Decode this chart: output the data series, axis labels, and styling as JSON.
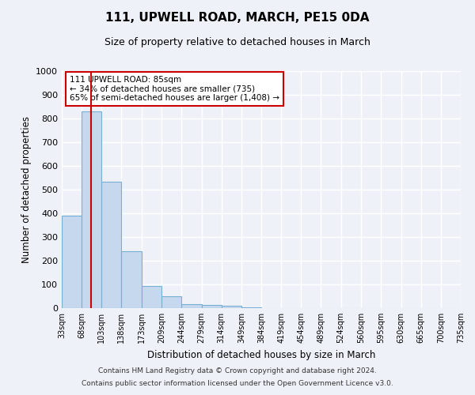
{
  "title": "111, UPWELL ROAD, MARCH, PE15 0DA",
  "subtitle": "Size of property relative to detached houses in March",
  "xlabel": "Distribution of detached houses by size in March",
  "ylabel": "Number of detached properties",
  "bar_color": "#c5d8ee",
  "bar_edge_color": "#7aafd4",
  "bins": [
    "33sqm",
    "68sqm",
    "103sqm",
    "138sqm",
    "173sqm",
    "209sqm",
    "244sqm",
    "279sqm",
    "314sqm",
    "349sqm",
    "384sqm",
    "419sqm",
    "454sqm",
    "489sqm",
    "524sqm",
    "560sqm",
    "595sqm",
    "630sqm",
    "665sqm",
    "700sqm",
    "735sqm"
  ],
  "bin_starts": [
    33,
    68,
    103,
    138,
    173,
    209,
    244,
    279,
    314,
    349,
    384,
    419,
    454,
    489,
    524,
    560,
    595,
    630,
    665,
    700
  ],
  "bin_width": 35,
  "values": [
    390,
    830,
    535,
    240,
    95,
    50,
    18,
    13,
    10,
    5,
    0,
    0,
    0,
    0,
    0,
    0,
    0,
    0,
    0,
    0
  ],
  "ylim": [
    0,
    1000
  ],
  "yticks": [
    0,
    100,
    200,
    300,
    400,
    500,
    600,
    700,
    800,
    900,
    1000
  ],
  "property_size": 85,
  "vline_color": "#cc0000",
  "annotation_text": "111 UPWELL ROAD: 85sqm\n← 34% of detached houses are smaller (735)\n65% of semi-detached houses are larger (1,408) →",
  "annotation_box_color": "#ffffff",
  "annotation_box_edge": "#cc0000",
  "bg_color": "#eef2f8",
  "grid_color": "#ffffff",
  "footer1": "Contains HM Land Registry data © Crown copyright and database right 2024.",
  "footer2": "Contains public sector information licensed under the Open Government Licence v3.0."
}
